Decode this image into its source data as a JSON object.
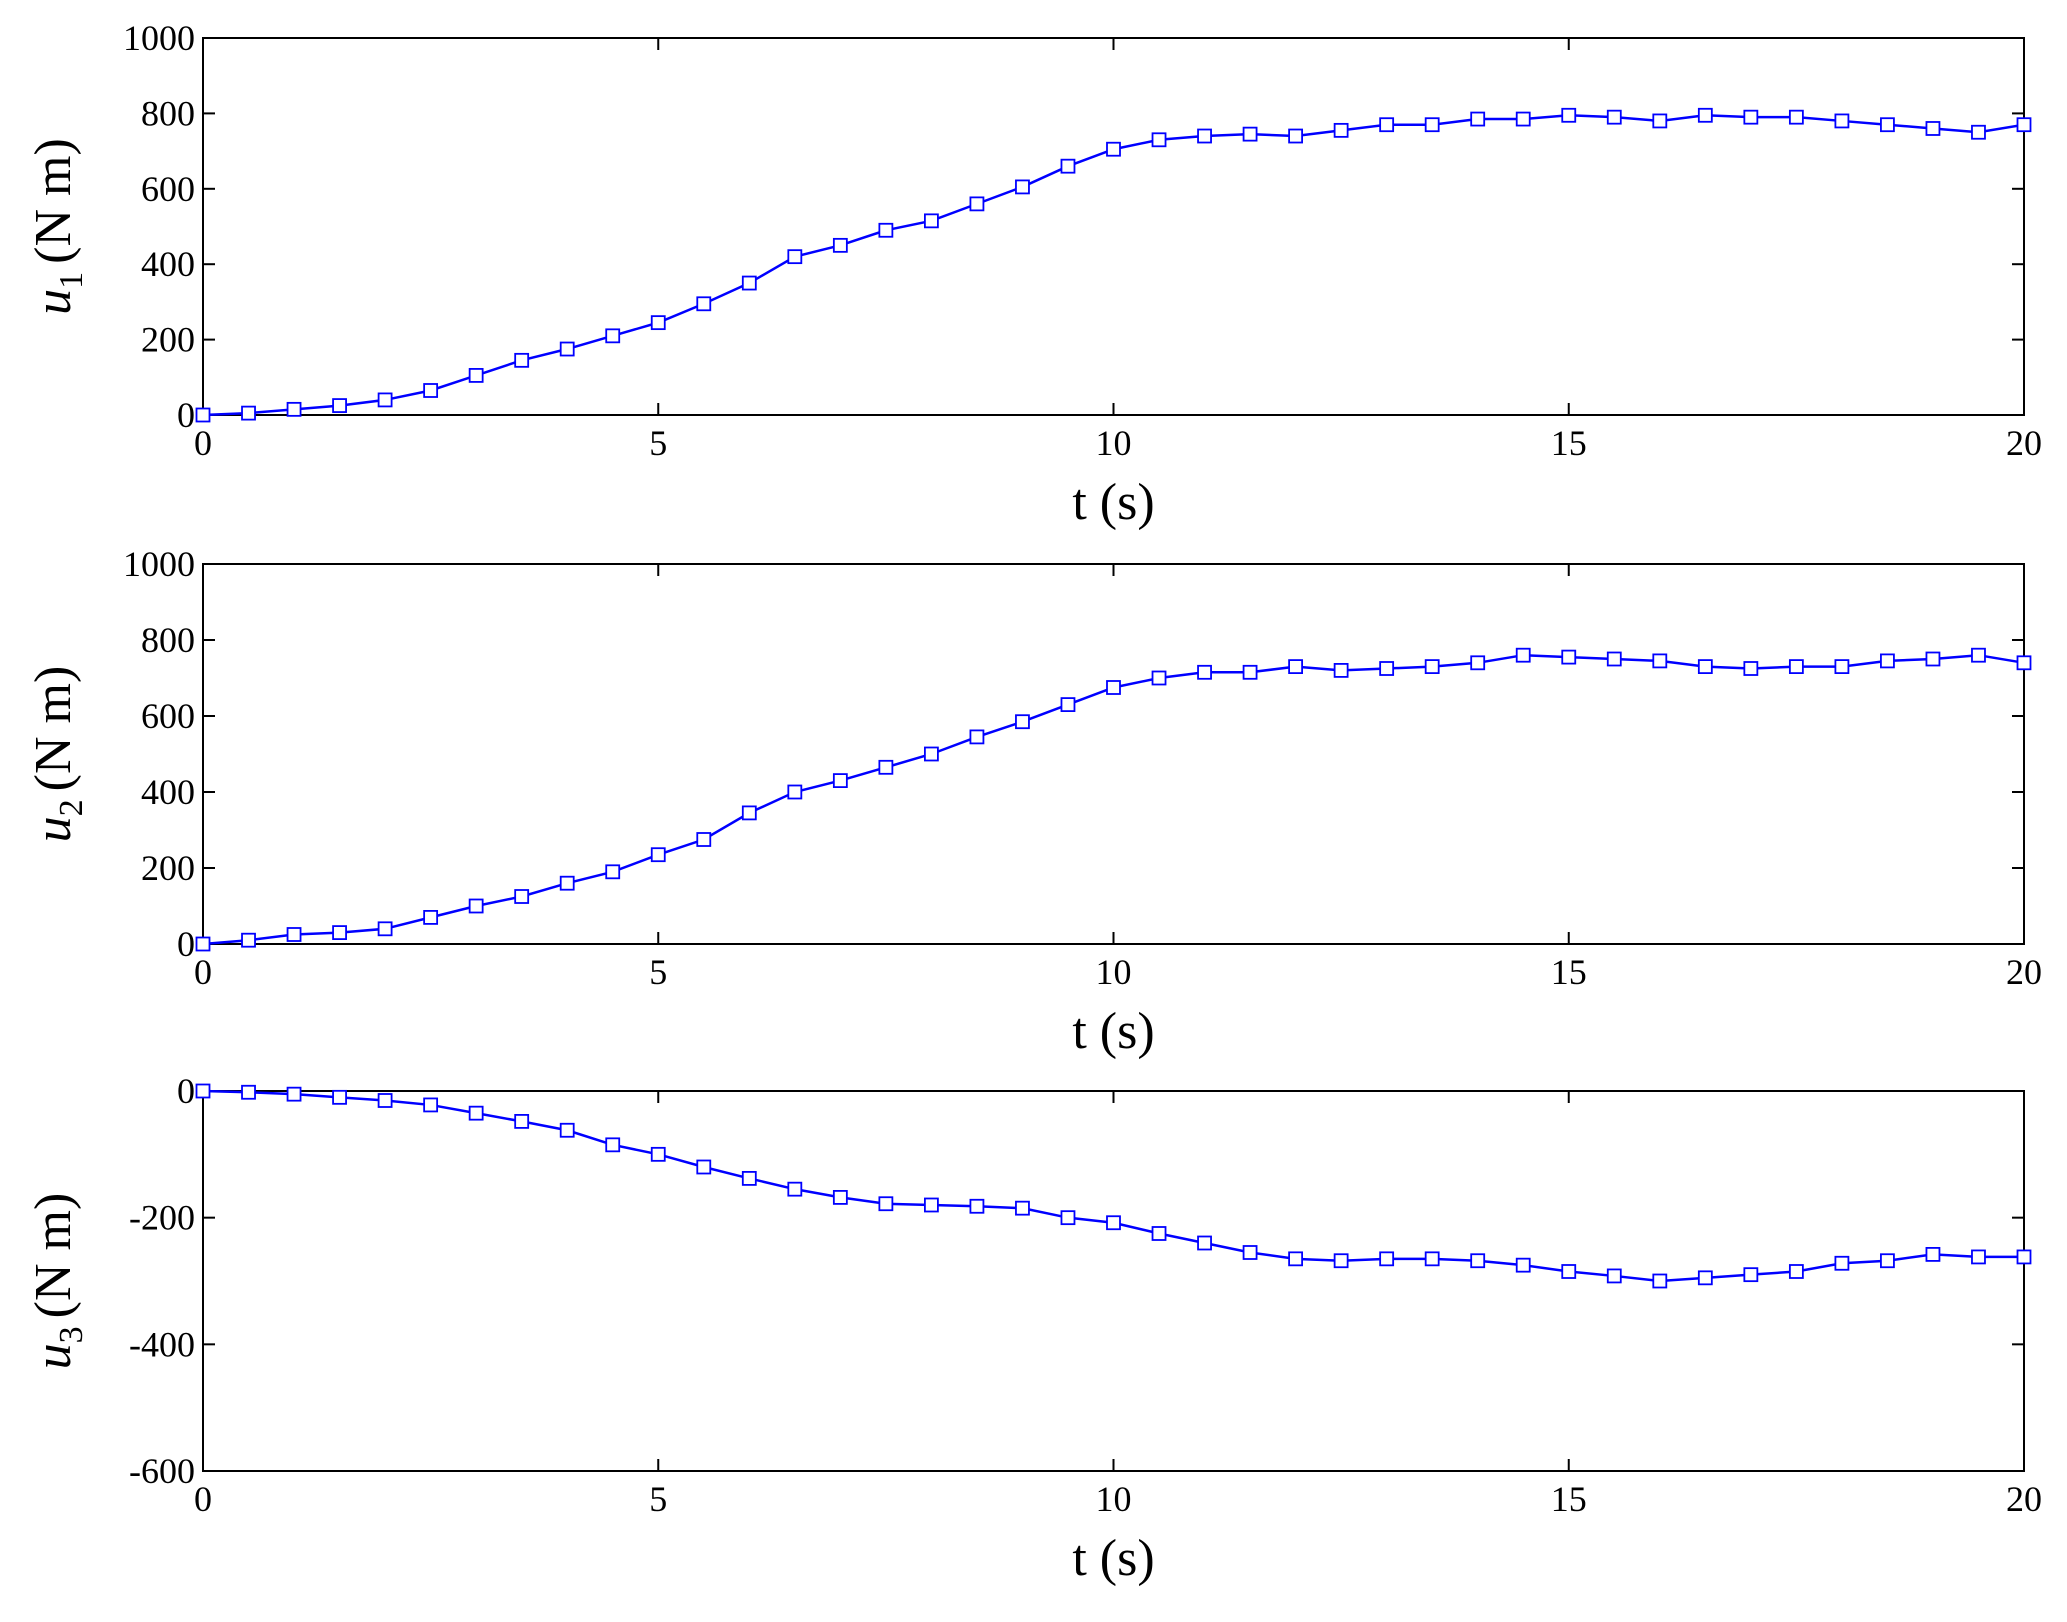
{
  "chart_data": [
    {
      "type": "line",
      "xlabel": "t (s)",
      "ylabel": {
        "symbol": "u",
        "subscript": "1",
        "unit": "(N m)"
      },
      "x": [
        0,
        0.5,
        1,
        1.5,
        2,
        2.5,
        3,
        3.5,
        4,
        4.5,
        5,
        5.5,
        6,
        6.5,
        7,
        7.5,
        8,
        8.5,
        9,
        9.5,
        10,
        10.5,
        11,
        11.5,
        12,
        12.5,
        13,
        13.5,
        14,
        14.5,
        15,
        15.5,
        16,
        16.5,
        17,
        17.5,
        18,
        18.5,
        19,
        19.5,
        20
      ],
      "values": [
        0,
        5,
        15,
        25,
        40,
        65,
        105,
        145,
        175,
        210,
        245,
        295,
        350,
        420,
        450,
        490,
        515,
        560,
        605,
        660,
        705,
        730,
        740,
        745,
        740,
        755,
        770,
        770,
        785,
        785,
        795,
        790,
        780,
        795,
        790,
        790,
        780,
        770,
        760,
        750,
        770
      ],
      "color": "#0000ff",
      "xlim": [
        0,
        20
      ],
      "xticks": [
        0,
        5,
        10,
        15,
        20
      ],
      "ylim": [
        0,
        1000
      ],
      "yticks": [
        0,
        200,
        400,
        600,
        800,
        1000
      ]
    },
    {
      "type": "line",
      "xlabel": "t (s)",
      "ylabel": {
        "symbol": "u",
        "subscript": "2",
        "unit": "(N m)"
      },
      "x": [
        0,
        0.5,
        1,
        1.5,
        2,
        2.5,
        3,
        3.5,
        4,
        4.5,
        5,
        5.5,
        6,
        6.5,
        7,
        7.5,
        8,
        8.5,
        9,
        9.5,
        10,
        10.5,
        11,
        11.5,
        12,
        12.5,
        13,
        13.5,
        14,
        14.5,
        15,
        15.5,
        16,
        16.5,
        17,
        17.5,
        18,
        18.5,
        19,
        19.5,
        20
      ],
      "values": [
        0,
        10,
        25,
        30,
        40,
        70,
        100,
        125,
        160,
        190,
        235,
        275,
        345,
        400,
        430,
        465,
        500,
        545,
        585,
        630,
        675,
        700,
        715,
        715,
        730,
        720,
        725,
        730,
        740,
        760,
        755,
        750,
        745,
        730,
        725,
        730,
        730,
        745,
        750,
        760,
        740
      ],
      "color": "#0000ff",
      "xlim": [
        0,
        20
      ],
      "xticks": [
        0,
        5,
        10,
        15,
        20
      ],
      "ylim": [
        0,
        1000
      ],
      "yticks": [
        0,
        200,
        400,
        600,
        800,
        1000
      ]
    },
    {
      "type": "line",
      "xlabel": "t (s)",
      "ylabel": {
        "symbol": "u",
        "subscript": "3",
        "unit": "(N m)"
      },
      "x": [
        0,
        0.5,
        1,
        1.5,
        2,
        2.5,
        3,
        3.5,
        4,
        4.5,
        5,
        5.5,
        6,
        6.5,
        7,
        7.5,
        8,
        8.5,
        9,
        9.5,
        10,
        10.5,
        11,
        11.5,
        12,
        12.5,
        13,
        13.5,
        14,
        14.5,
        15,
        15.5,
        16,
        16.5,
        17,
        17.5,
        18,
        18.5,
        19,
        19.5,
        20
      ],
      "values": [
        0,
        -2,
        -5,
        -10,
        -15,
        -22,
        -35,
        -48,
        -62,
        -85,
        -100,
        -120,
        -138,
        -155,
        -168,
        -178,
        -180,
        -182,
        -185,
        -200,
        -208,
        -225,
        -240,
        -255,
        -265,
        -268,
        -265,
        -265,
        -268,
        -275,
        -285,
        -292,
        -300,
        -295,
        -290,
        -285,
        -272,
        -268,
        -258,
        -262,
        -262
      ],
      "color": "#0000ff",
      "xlim": [
        0,
        20
      ],
      "xticks": [
        0,
        5,
        10,
        15,
        20
      ],
      "ylim": [
        -600,
        0
      ],
      "yticks": [
        -600,
        -400,
        -200,
        0
      ]
    }
  ]
}
